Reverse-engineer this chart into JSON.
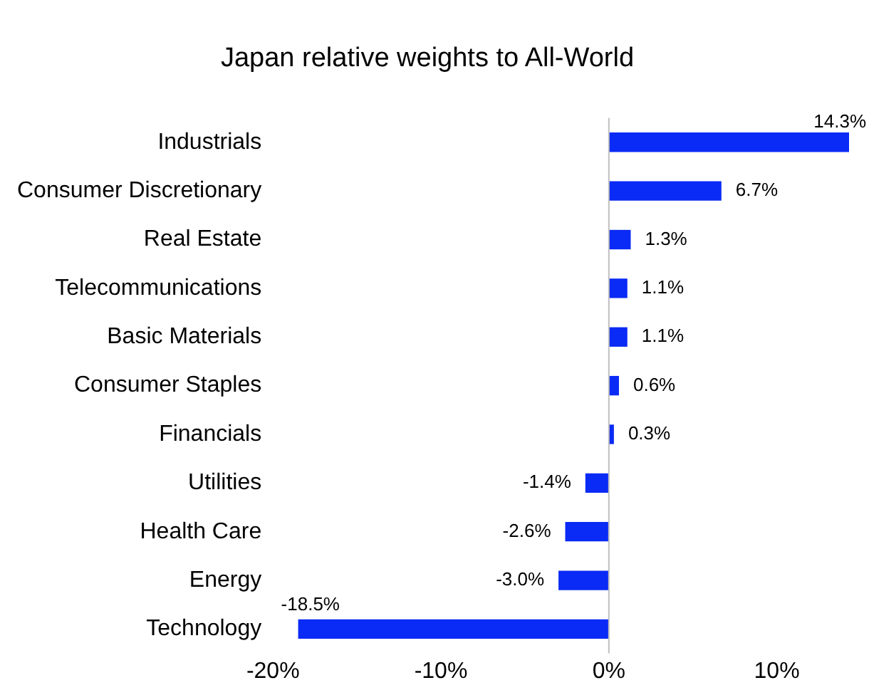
{
  "chart_data": {
    "type": "bar",
    "orientation": "horizontal",
    "title": "Japan relative weights to All-World",
    "categories": [
      "Industrials",
      "Consumer Discretionary",
      "Real Estate",
      "Telecommunications",
      "Basic Materials",
      "Consumer Staples",
      "Financials",
      "Utilities",
      "Health Care",
      "Energy",
      "Technology"
    ],
    "values": [
      14.3,
      6.7,
      1.3,
      1.1,
      1.1,
      0.6,
      0.3,
      -1.4,
      -2.6,
      -3.0,
      -18.5
    ],
    "value_labels": [
      "14.3%",
      "6.7%",
      "1.3%",
      "1.1%",
      "1.1%",
      "0.6%",
      "0.3%",
      "-1.4%",
      "-2.6%",
      "-3.0%",
      "-18.5%"
    ],
    "color": "#0a2af5",
    "xlim": [
      -20,
      14.3
    ],
    "ref_lines": [
      {
        "axis": "x",
        "value": 0,
        "color": "#bfbfbf"
      }
    ],
    "xticks": [
      {
        "value": -20,
        "label": "-20%"
      },
      {
        "value": -10,
        "label": "-10%"
      },
      {
        "value": 0,
        "label": "0%"
      },
      {
        "value": 10,
        "label": "10%"
      }
    ],
    "grid": false,
    "legend": false
  }
}
